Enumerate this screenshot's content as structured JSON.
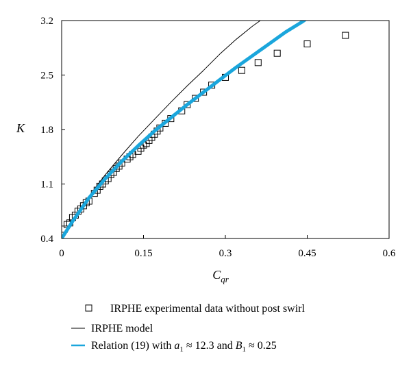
{
  "chart_data": {
    "type": "line",
    "xlabel": "C_qr",
    "ylabel": "K",
    "xlim": [
      0,
      0.6
    ],
    "ylim": [
      0.4,
      3.2
    ],
    "xticks": [
      "0",
      "0.15",
      "0.3",
      "0.45",
      "0.6"
    ],
    "yticks": [
      "0.4",
      "1.1",
      "1.8",
      "2.5",
      "3.2"
    ],
    "grid": false,
    "legend_position": "bottom",
    "series": [
      {
        "name": "IRPHE experimental data without post swirl",
        "style": "markers-open-square",
        "color": "#000000",
        "x": [
          0.005,
          0.01,
          0.015,
          0.02,
          0.025,
          0.03,
          0.035,
          0.04,
          0.045,
          0.05,
          0.06,
          0.065,
          0.07,
          0.075,
          0.08,
          0.085,
          0.09,
          0.095,
          0.1,
          0.105,
          0.11,
          0.12,
          0.125,
          0.13,
          0.14,
          0.145,
          0.15,
          0.155,
          0.16,
          0.165,
          0.17,
          0.175,
          0.18,
          0.19,
          0.2,
          0.22,
          0.23,
          0.245,
          0.26,
          0.275,
          0.3,
          0.33,
          0.36,
          0.395,
          0.45,
          0.52
        ],
        "y": [
          0.52,
          0.58,
          0.6,
          0.67,
          0.7,
          0.75,
          0.78,
          0.82,
          0.86,
          0.88,
          0.98,
          1.02,
          1.07,
          1.1,
          1.14,
          1.17,
          1.22,
          1.25,
          1.3,
          1.33,
          1.37,
          1.42,
          1.45,
          1.48,
          1.52,
          1.56,
          1.6,
          1.62,
          1.66,
          1.7,
          1.74,
          1.78,
          1.82,
          1.88,
          1.94,
          2.04,
          2.12,
          2.2,
          2.28,
          2.37,
          2.47,
          2.56,
          2.66,
          2.78,
          2.9,
          3.01
        ]
      },
      {
        "name": "IRPHE model",
        "style": "line-thin",
        "color": "#000000",
        "x": [
          0.0,
          0.02,
          0.05,
          0.08,
          0.11,
          0.14,
          0.17,
          0.2,
          0.23,
          0.26,
          0.29,
          0.32,
          0.35,
          0.37
        ],
        "y": [
          0.4,
          0.63,
          0.94,
          1.22,
          1.47,
          1.71,
          1.93,
          2.15,
          2.36,
          2.56,
          2.77,
          2.96,
          3.13,
          3.23
        ]
      },
      {
        "name": "Relation (19) with a1 ≈ 12.3 and B1 ≈ 0.25",
        "style": "line-thick",
        "color": "#1aa6dc",
        "x": [
          0.0,
          0.02,
          0.05,
          0.08,
          0.11,
          0.14,
          0.17,
          0.2,
          0.23,
          0.26,
          0.29,
          0.32,
          0.35,
          0.38,
          0.41,
          0.44,
          0.45
        ],
        "y": [
          0.4,
          0.62,
          0.92,
          1.17,
          1.39,
          1.59,
          1.78,
          1.95,
          2.12,
          2.28,
          2.44,
          2.6,
          2.75,
          2.9,
          3.05,
          3.18,
          3.23
        ]
      }
    ]
  },
  "legend": {
    "entry1": "IRPHE experimental data without post swirl",
    "entry2": "IRPHE model",
    "entry3_part1": "Relation (19) with ",
    "entry3_a": "a",
    "entry3_sub1": "1",
    "entry3_part2": " ≈ 12.3 and ",
    "entry3_b": "B",
    "entry3_sub2": "1",
    "entry3_part3": " ≈ 0.25"
  },
  "axes": {
    "x_label_main": "C",
    "x_label_sub": "qr",
    "y_label": "K"
  }
}
